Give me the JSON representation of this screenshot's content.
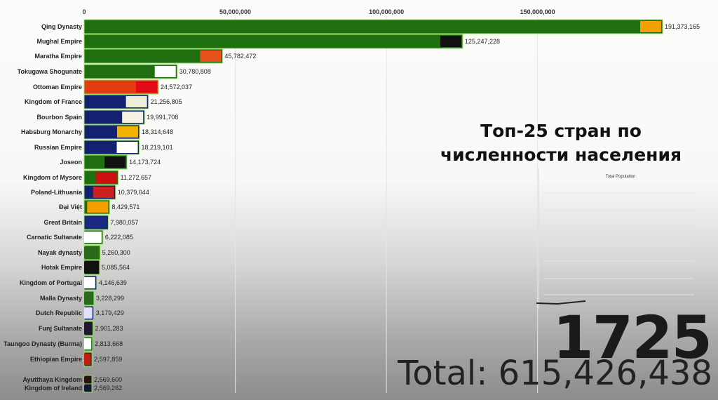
{
  "title_lines": [
    "Топ-25 стран по",
    "численности населения"
  ],
  "year": "1725",
  "total_label": "Total: 615,426,438",
  "chart_data": {
    "type": "bar",
    "orientation": "horizontal",
    "xlim": [
      0,
      200000000
    ],
    "x_ticks": [
      0,
      50000000,
      100000000,
      150000000
    ],
    "x_tick_labels": [
      "0",
      "50,000,000",
      "100,000,000",
      "150,000,000"
    ],
    "grid": true,
    "categories": [
      "Qing Dynasty",
      "Mughal Empire",
      "Maratha Empire",
      "Tokugawa Shogunate",
      "Ottoman Empire",
      "Kingdom of France",
      "Bourbon Spain",
      "Habsburg Monarchy",
      "Russian Empire",
      "Joseon",
      "Kingdom of Mysore",
      "Poland-Lithuania",
      "Đại Việt",
      "Great Britain",
      "Carnatic Sultanate",
      "Nayak dynasty",
      "Hotak Empire",
      "Kingdom of Portugal",
      "Malla Dynasty",
      "Dutch Republic",
      "Funj Sultanate",
      "Taungoo Dynasty (Burma)",
      "Ethiopian Empire",
      "Ayutthaya Kingdom",
      "Kingdom of Ireland"
    ],
    "values": [
      191373165,
      125247228,
      45782472,
      30780808,
      24572037,
      21256805,
      19991708,
      18314648,
      18219101,
      14173724,
      11272657,
      10379044,
      8429571,
      7980057,
      6222085,
      5260300,
      5085564,
      4146639,
      3228299,
      3179429,
      2901283,
      2813668,
      2597859,
      2569600,
      2569262
    ],
    "value_labels": [
      "191,373,165",
      "125,247,228",
      "45,782,472",
      "30,780,808",
      "24,572,037",
      "21,256,805",
      "19,991,708",
      "18,314,648",
      "18,219,101",
      "14,173,724",
      "11,272,657",
      "10,379,044",
      "8,429,571",
      "7,980,057",
      "6,222,085",
      "5,260,300",
      "5,085,564",
      "4,146,639",
      "3,228,299",
      "3,179,429",
      "2,901,283",
      "2,813,668",
      "2,597,859",
      "2,569,600",
      "2,569,262"
    ],
    "bar_colors": [
      "#1f6e0f",
      "#1f6e0f",
      "#1f6e0f",
      "#1f6e0f",
      "#e23c10",
      "#142070",
      "#142070",
      "#142070",
      "#142070",
      "#1f6e0f",
      "#1f6e0f",
      "#142070",
      "#1f6e0f",
      "#142070",
      "#1f6e0f",
      "#1f6e0f",
      "#111111",
      "#142070",
      "#1f6e0f",
      "#142070",
      "#1c1430",
      "#1f6e0f",
      "#1f3a10",
      "#2a1010",
      "#141830"
    ],
    "flag_colors": [
      "#f0a000",
      "#111111",
      "#e8501a",
      "#ffffff",
      "#e30a17",
      "#eeeedd",
      "#f5f0e0",
      "#f2b200",
      "#ffffff",
      "#111111",
      "#cc1010",
      "#cc2020",
      "#f5a000",
      "#1a2a80",
      "#ffffff",
      "#2a6a1a",
      "#111111",
      "#ffffff",
      "#2a6a1a",
      "#e0e0ff",
      "#201830",
      "#ffffff",
      "#c02010",
      "#301010",
      "#141830"
    ]
  },
  "inset": {
    "title": "Total Population"
  }
}
